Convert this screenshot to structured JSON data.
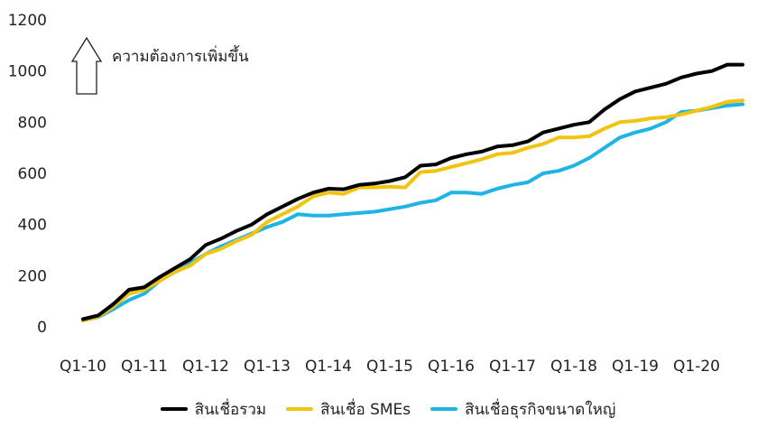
{
  "chart_data": {
    "type": "line",
    "title": "",
    "xlabel": "",
    "ylabel": "",
    "ylim": [
      0,
      1200
    ],
    "yticks": [
      0,
      200,
      400,
      600,
      800,
      1000,
      1200
    ],
    "xtick_labels": [
      "Q1-10",
      "Q1-11",
      "Q1-12",
      "Q1-13",
      "Q1-14",
      "Q1-15",
      "Q1-16",
      "Q1-17",
      "Q1-18",
      "Q1-19",
      "Q1-20"
    ],
    "quarters": [
      "Q1-10",
      "Q2-10",
      "Q3-10",
      "Q4-10",
      "Q1-11",
      "Q2-11",
      "Q3-11",
      "Q4-11",
      "Q1-12",
      "Q2-12",
      "Q3-12",
      "Q4-12",
      "Q1-13",
      "Q2-13",
      "Q3-13",
      "Q4-13",
      "Q1-14",
      "Q2-14",
      "Q3-14",
      "Q4-14",
      "Q1-15",
      "Q2-15",
      "Q3-15",
      "Q4-15",
      "Q1-16",
      "Q2-16",
      "Q3-16",
      "Q4-16",
      "Q1-17",
      "Q2-17",
      "Q3-17",
      "Q4-17",
      "Q1-18",
      "Q2-18",
      "Q3-18",
      "Q4-18",
      "Q1-19",
      "Q2-19",
      "Q3-19",
      "Q4-19",
      "Q1-20",
      "Q2-20",
      "Q3-20",
      "Q4-20"
    ],
    "grid": false,
    "legend_position": "bottom",
    "annotation": "ความต้องการเพิ่มขึ้น",
    "series": [
      {
        "name": "สินเชื่อรวม",
        "color": "#000000",
        "values": [
          30,
          45,
          90,
          145,
          155,
          195,
          230,
          265,
          320,
          345,
          375,
          400,
          440,
          470,
          500,
          525,
          540,
          538,
          555,
          560,
          570,
          585,
          630,
          635,
          660,
          675,
          685,
          705,
          710,
          725,
          760,
          775,
          790,
          800,
          850,
          890,
          920,
          935,
          950,
          975,
          990,
          1000,
          1025,
          1025
        ]
      },
      {
        "name": "สินเชื่อ SMEs",
        "color": "#F2C40F",
        "values": [
          25,
          40,
          80,
          130,
          145,
          180,
          215,
          240,
          285,
          305,
          335,
          360,
          410,
          440,
          470,
          510,
          525,
          520,
          545,
          545,
          548,
          545,
          605,
          610,
          625,
          640,
          655,
          675,
          680,
          700,
          715,
          740,
          740,
          745,
          775,
          800,
          805,
          815,
          820,
          830,
          845,
          860,
          880,
          885
        ]
      },
      {
        "name": "สินเชื่อธุรกิจขนาดใหญ่",
        "color": "#1EB4E6",
        "values": [
          25,
          38,
          70,
          105,
          130,
          180,
          215,
          250,
          285,
          315,
          340,
          365,
          390,
          410,
          440,
          435,
          435,
          440,
          445,
          450,
          460,
          470,
          485,
          495,
          525,
          525,
          520,
          540,
          555,
          565,
          600,
          610,
          630,
          660,
          700,
          740,
          760,
          775,
          800,
          840,
          845,
          855,
          865,
          870
        ]
      }
    ]
  }
}
